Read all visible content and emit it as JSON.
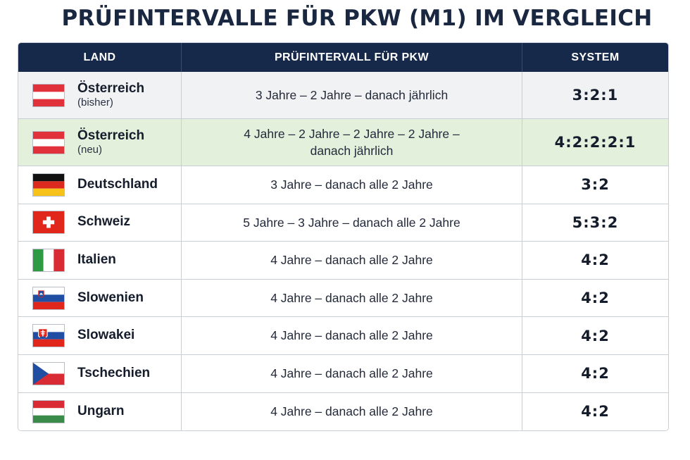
{
  "title": "PRÜFINTERVALLE FÜR PKW (M1) IM VERGLEICH",
  "headers": {
    "land": "LAND",
    "interval": "PRÜFINTERVALL FÜR PKW",
    "system": "SYSTEM"
  },
  "rows": [
    {
      "country": "Österreich",
      "sub": "(bisher)",
      "flag": "austria-flag-icon",
      "interval": "3 Jahre – 2 Jahre – danach jährlich",
      "system": "3:2:1",
      "highlight": "grey"
    },
    {
      "country": "Österreich",
      "sub": "(neu)",
      "flag": "austria-flag-icon",
      "interval": "4 Jahre – 2 Jahre – 2 Jahre – 2 Jahre – danach jährlich",
      "system": "4:2:2:2:1",
      "highlight": "green"
    },
    {
      "country": "Deutschland",
      "sub": "",
      "flag": "germany-flag-icon",
      "interval": "3 Jahre – danach alle 2 Jahre",
      "system": "3:2",
      "highlight": "none"
    },
    {
      "country": "Schweiz",
      "sub": "",
      "flag": "switzerland-flag-icon",
      "interval": "5 Jahre – 3 Jahre – danach alle 2 Jahre",
      "system": "5:3:2",
      "highlight": "none"
    },
    {
      "country": "Italien",
      "sub": "",
      "flag": "italy-flag-icon",
      "interval": "4 Jahre – danach alle 2 Jahre",
      "system": "4:2",
      "highlight": "none"
    },
    {
      "country": "Slowenien",
      "sub": "",
      "flag": "slovenia-flag-icon",
      "interval": "4 Jahre – danach alle 2 Jahre",
      "system": "4:2",
      "highlight": "none"
    },
    {
      "country": "Slowakei",
      "sub": "",
      "flag": "slovakia-flag-icon",
      "interval": "4 Jahre – danach alle 2 Jahre",
      "system": "4:2",
      "highlight": "none"
    },
    {
      "country": "Tschechien",
      "sub": "",
      "flag": "czechia-flag-icon",
      "interval": "4 Jahre – danach alle 2 Jahre",
      "system": "4:2",
      "highlight": "none"
    },
    {
      "country": "Ungarn",
      "sub": "",
      "flag": "hungary-flag-icon",
      "interval": "4 Jahre – danach alle 2 Jahre",
      "system": "4:2",
      "highlight": "none"
    }
  ],
  "colors": {
    "header_bg": "#17294a",
    "highlight_grey": "#f1f2f4",
    "highlight_green": "#e3f0dc"
  }
}
